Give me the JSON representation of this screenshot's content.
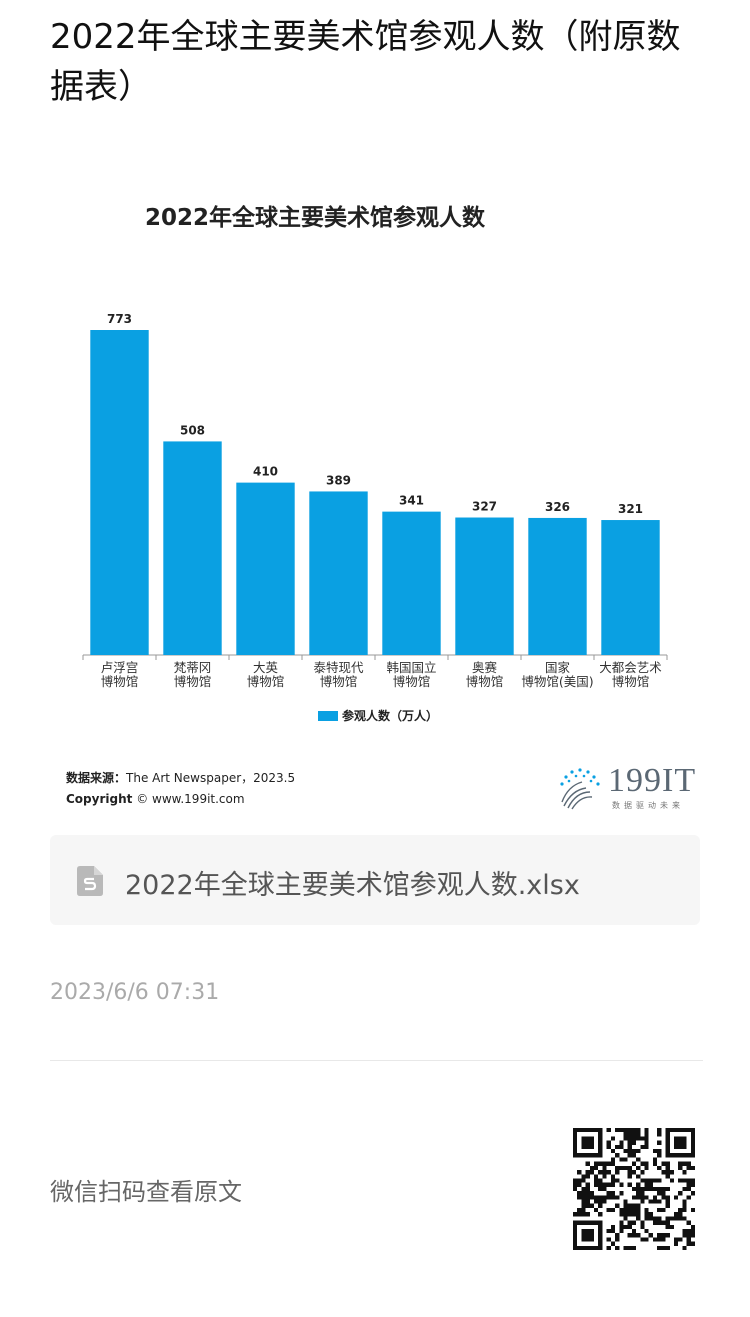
{
  "article": {
    "title": "2022年全球主要美术馆参观人数（附原数据表）"
  },
  "chart_data": {
    "type": "bar",
    "title": "2022年全球主要美术馆参观人数",
    "categories": [
      [
        "卢浮宫",
        "博物馆"
      ],
      [
        "梵蒂冈",
        "博物馆"
      ],
      [
        "大英",
        "博物馆"
      ],
      [
        "泰特现代",
        "博物馆"
      ],
      [
        "韩国国立",
        "博物馆"
      ],
      [
        "奥赛",
        "博物馆"
      ],
      [
        "国家",
        "博物馆(美国)"
      ],
      [
        "大都会艺术",
        "博物馆"
      ]
    ],
    "series": [
      {
        "name": "参观人数（万人）",
        "values": [
          773,
          508,
          410,
          389,
          341,
          327,
          326,
          321
        ],
        "color": "#0aa0e2"
      }
    ],
    "ylim": [
      0,
      800
    ],
    "grid": false,
    "legend_position": "bottom",
    "data_labels": true
  },
  "source": {
    "label": "数据来源：",
    "text": "The Art Newspaper，2023.5",
    "copyright_label": "Copyright",
    "copyright_text": "© www.199it.com"
  },
  "brand": {
    "name": "199IT",
    "slogan": "数据驱动未来",
    "color": "#0aa0e2"
  },
  "attachment": {
    "filename": "2022年全球主要美术馆参观人数.xlsx",
    "icon": "spreadsheet-file-icon"
  },
  "timestamp": "2023/6/6 07:31",
  "footer": {
    "scan_text": "微信扫码查看原文",
    "qr_icon": "qr-code-icon"
  }
}
